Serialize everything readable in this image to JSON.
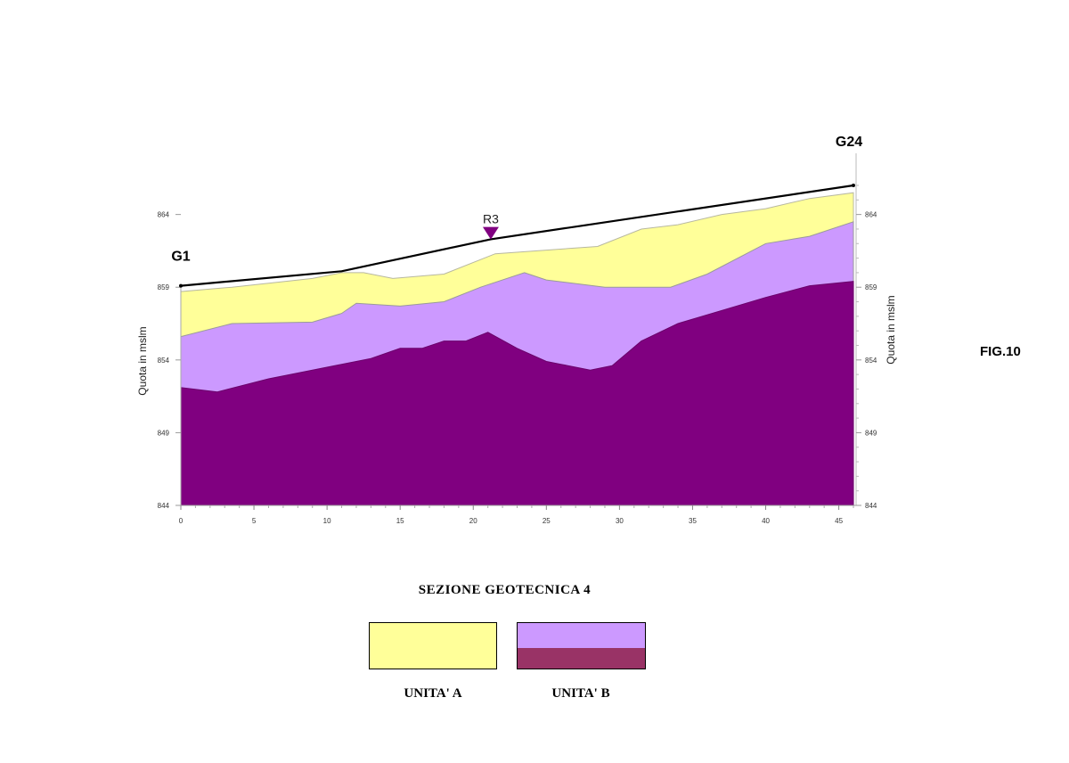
{
  "figure_label": "FIG.10",
  "section_title": "SEZIONE GEOTECNICA 4",
  "colors": {
    "unit_a": "#ffff99",
    "unit_b_upper": "#cc99ff",
    "unit_b_lower": "#800080",
    "legend_b_lower": "#993366",
    "marker": "#800080",
    "ground_line": "#000000"
  },
  "legend": [
    {
      "label": "UNITA' A"
    },
    {
      "label": "UNITA' B"
    }
  ],
  "chart_data": {
    "type": "area",
    "ylabel_left": "Quota in mslm",
    "ylabel_right": "Quota in mslm",
    "xlim": [
      0,
      46
    ],
    "ylim": [
      844,
      866
    ],
    "x_ticks": [
      "0",
      "5",
      "10",
      "15",
      "20",
      "25",
      "30",
      "35",
      "40",
      "45"
    ],
    "y_ticks": [
      "844",
      "849",
      "854",
      "859",
      "864"
    ],
    "points": [
      {
        "label": "G1",
        "x": 0,
        "y": 859.1
      },
      {
        "label": "G24",
        "x": 46,
        "y": 866.0
      }
    ],
    "markers": [
      {
        "label": "R3",
        "x": 21.2,
        "y": 862.9,
        "symbol": "triangle-down"
      }
    ],
    "ground_line": {
      "x": [
        0,
        11,
        21.2,
        46
      ],
      "y": [
        859.1,
        860.1,
        862.3,
        866.0
      ]
    },
    "series": [
      {
        "name": "UNITA' A",
        "x": [
          0,
          3.5,
          9,
          11,
          12.5,
          14.5,
          18,
          21.5,
          28.5,
          31.5,
          34,
          37,
          40,
          43,
          46
        ],
        "y": [
          858.7,
          859.0,
          859.6,
          860.0,
          860.0,
          859.6,
          859.9,
          861.3,
          861.8,
          863.0,
          863.3,
          864.0,
          864.4,
          865.1,
          865.5
        ]
      },
      {
        "name": "UNITA' B (upper)",
        "x": [
          0,
          3.5,
          9,
          11,
          12,
          15,
          18,
          20.5,
          23.5,
          25,
          29,
          33.5,
          36,
          40,
          43,
          46
        ],
        "y": [
          855.6,
          856.5,
          856.6,
          857.2,
          857.9,
          857.7,
          858.0,
          859.0,
          860.0,
          859.5,
          859.0,
          859.0,
          859.9,
          862.0,
          862.5,
          863.5
        ]
      },
      {
        "name": "UNITA' B (lower)",
        "x": [
          0,
          2.5,
          6,
          8,
          11,
          13,
          15,
          16.5,
          18,
          19.5,
          21,
          23,
          25,
          26,
          28,
          29.5,
          31.5,
          34,
          37,
          40,
          43,
          46
        ],
        "y": [
          852.1,
          851.8,
          852.7,
          853.1,
          853.7,
          854.1,
          854.8,
          854.8,
          855.3,
          855.3,
          855.9,
          854.8,
          853.9,
          853.7,
          853.3,
          853.6,
          855.3,
          856.5,
          857.4,
          858.3,
          859.1,
          859.4
        ]
      }
    ]
  }
}
